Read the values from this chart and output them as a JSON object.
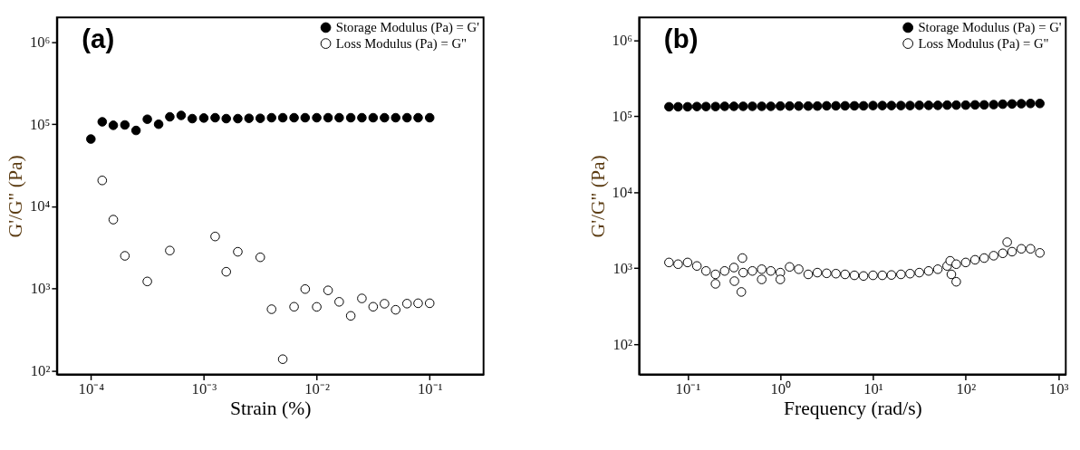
{
  "chart_data": [
    {
      "type": "scatter",
      "xlabel": "Strain (%)",
      "ylabel": "G'/G\" (Pa)",
      "annotations": [
        "(a)"
      ],
      "log": "xy",
      "grid": false,
      "legend": "top right",
      "marker": "circle",
      "xlim": [
        5e-05,
        0.3
      ],
      "ylim": [
        90,
        2000000
      ],
      "xticks": [
        {
          "value": 0.0001,
          "label": "10⁻⁴"
        },
        {
          "value": 0.001,
          "label": "10⁻³"
        },
        {
          "value": 0.01,
          "label": "10⁻²"
        },
        {
          "value": 0.1,
          "label": "10⁻¹"
        }
      ],
      "yticks": [
        {
          "value": 100,
          "label": "10²"
        },
        {
          "value": 1000,
          "label": "10³"
        },
        {
          "value": 10000,
          "label": "10⁴"
        },
        {
          "value": 100000,
          "label": "10⁵"
        },
        {
          "value": 1000000,
          "label": "10⁶"
        }
      ],
      "x": [
        0.0001,
        0.000126,
        0.000158,
        0.0002,
        0.000251,
        0.000316,
        0.000398,
        0.0005,
        0.00063,
        0.00079,
        0.001,
        0.00126,
        0.00158,
        0.002,
        0.00251,
        0.00316,
        0.00398,
        0.005,
        0.0063,
        0.0079,
        0.01,
        0.0126,
        0.0158,
        0.02,
        0.0251,
        0.0316,
        0.0398,
        0.05,
        0.063,
        0.079,
        0.1
      ],
      "series": [
        {
          "name": "Storage Modulus (Pa) = G'",
          "color": "#000000",
          "values": [
            66000,
            107000,
            97000,
            98000,
            84000,
            115000,
            100000,
            123000,
            128000,
            117000,
            119000,
            120000,
            117000,
            117000,
            118000,
            118000,
            120000,
            120000,
            120000,
            120000,
            120000,
            120000,
            120000,
            120000,
            120000,
            120000,
            120000,
            120000,
            120000,
            120000,
            120000
          ]
        },
        {
          "name": "Loss Modulus (Pa) = G\"",
          "color": "#ffffff",
          "values": [
            null,
            20700,
            6900,
            2500,
            null,
            1220,
            null,
            2900,
            null,
            null,
            null,
            4300,
            1600,
            2800,
            null,
            2400,
            560,
            138,
            600,
            985,
            598,
            950,
            689,
            465,
            758,
            600,
            653,
            551,
            655,
            662,
            662
          ]
        }
      ]
    },
    {
      "type": "scatter",
      "xlabel": "Frequency (rad/s)",
      "ylabel": "G'/G\" (Pa)",
      "annotations": [
        "(b)"
      ],
      "log": "xy",
      "grid": false,
      "legend": "top right",
      "marker": "circle",
      "xlim": [
        0.03,
        1200
      ],
      "ylim": [
        40,
        2000000
      ],
      "xticks": [
        {
          "value": 0.1,
          "label": "10⁻¹"
        },
        {
          "value": 1,
          "label": "10⁰"
        },
        {
          "value": 10,
          "label": "10¹"
        },
        {
          "value": 100,
          "label": "10²"
        },
        {
          "value": 1000,
          "label": "10³"
        }
      ],
      "yticks": [
        {
          "value": 100,
          "label": "10²"
        },
        {
          "value": 1000,
          "label": "10³"
        },
        {
          "value": 10000,
          "label": "10⁴"
        },
        {
          "value": 100000,
          "label": "10⁵"
        },
        {
          "value": 1000000,
          "label": "10⁶"
        }
      ],
      "series": [
        {
          "name": "Storage Modulus (Pa) = G'",
          "color": "#000000",
          "x": [
            0.063,
            0.079,
            0.1,
            0.126,
            0.158,
            0.2,
            0.251,
            0.316,
            0.398,
            0.5,
            0.63,
            0.79,
            1,
            1.26,
            1.58,
            2,
            2.51,
            3.16,
            3.98,
            5,
            6.3,
            7.9,
            10,
            12.6,
            15.8,
            20,
            25.1,
            31.6,
            39.8,
            50,
            63,
            79,
            100,
            126,
            158,
            200,
            251,
            316,
            398,
            500,
            630
          ],
          "values": [
            133000,
            133000,
            133000,
            134000,
            134000,
            134000,
            135000,
            135000,
            135000,
            135000,
            135000,
            135000,
            136000,
            136000,
            136000,
            136000,
            136000,
            137000,
            137000,
            137000,
            137000,
            137000,
            138000,
            138000,
            138000,
            138000,
            138000,
            139000,
            139000,
            139000,
            140000,
            140000,
            140000,
            141000,
            141000,
            142000,
            144000,
            145000,
            146000,
            147000,
            147000
          ]
        },
        {
          "name": "Loss Modulus (Pa) = G\"",
          "color": "#ffffff",
          "x": [
            0.063,
            0.079,
            0.1,
            0.126,
            0.158,
            0.2,
            0.2,
            0.251,
            0.316,
            0.32,
            0.38,
            0.39,
            0.398,
            0.5,
            0.63,
            0.63,
            0.79,
            1,
            1,
            1.26,
            1.58,
            2,
            2.51,
            3.16,
            3.98,
            5,
            6.3,
            7.9,
            10,
            12.6,
            15.8,
            20,
            25.1,
            31.6,
            39.8,
            50,
            63,
            68,
            70,
            79,
            79,
            100,
            126,
            158,
            200,
            251,
            280,
            316,
            398,
            500,
            630
          ],
          "values": [
            1190,
            1130,
            1190,
            1070,
            920,
            830,
            623,
            920,
            1020,
            676,
            487,
            1360,
            875,
            920,
            970,
            712,
            920,
            875,
            712,
            1040,
            970,
            830,
            875,
            857,
            848,
            830,
            806,
            790,
            806,
            806,
            814,
            830,
            848,
            875,
            920,
            970,
            1070,
            1250,
            830,
            663,
            1130,
            1190,
            1290,
            1360,
            1460,
            1570,
            2200,
            1650,
            1800,
            1800,
            1590
          ]
        }
      ]
    }
  ]
}
